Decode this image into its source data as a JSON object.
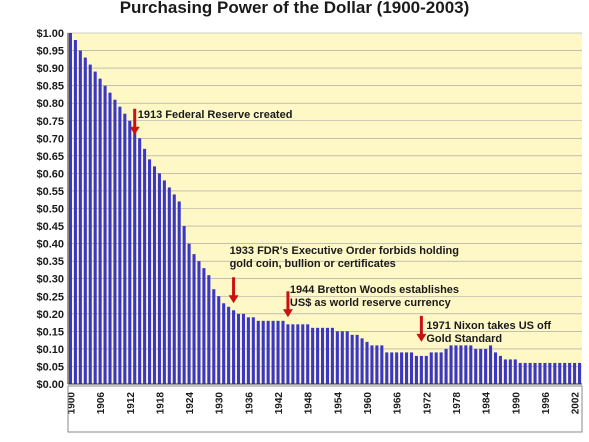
{
  "chart_data": {
    "type": "bar",
    "title": "Purchasing Power of the Dollar (1900-2003)",
    "xlabel": "",
    "ylabel": "",
    "ylim": [
      0,
      1.0
    ],
    "grid": true,
    "legend": "none",
    "yticks": [
      "$1.00",
      "$0.95",
      "$0.90",
      "$0.85",
      "$0.80",
      "$0.75",
      "$0.70",
      "$0.65",
      "$0.60",
      "$0.55",
      "$0.50",
      "$0.45",
      "$0.40",
      "$0.35",
      "$0.30",
      "$0.25",
      "$0.20",
      "$0.15",
      "$0.10",
      "$0.05",
      "$0.00"
    ],
    "xticks": [
      "1900",
      "1906",
      "1912",
      "1918",
      "1924",
      "1930",
      "1936",
      "1942",
      "1948",
      "1954",
      "1960",
      "1966",
      "1972",
      "1978",
      "1984",
      "1990",
      "1996",
      "2002"
    ],
    "x": [
      1900,
      1901,
      1902,
      1903,
      1904,
      1905,
      1906,
      1907,
      1908,
      1909,
      1910,
      1911,
      1912,
      1913,
      1914,
      1915,
      1916,
      1917,
      1918,
      1919,
      1920,
      1921,
      1922,
      1923,
      1924,
      1925,
      1926,
      1927,
      1928,
      1929,
      1930,
      1931,
      1932,
      1933,
      1934,
      1935,
      1936,
      1937,
      1938,
      1939,
      1940,
      1941,
      1942,
      1943,
      1944,
      1945,
      1946,
      1947,
      1948,
      1949,
      1950,
      1951,
      1952,
      1953,
      1954,
      1955,
      1956,
      1957,
      1958,
      1959,
      1960,
      1961,
      1962,
      1963,
      1964,
      1965,
      1966,
      1967,
      1968,
      1969,
      1970,
      1971,
      1972,
      1973,
      1974,
      1975,
      1976,
      1977,
      1978,
      1979,
      1980,
      1981,
      1982,
      1983,
      1984,
      1985,
      1986,
      1987,
      1988,
      1989,
      1990,
      1991,
      1992,
      1993,
      1994,
      1995,
      1996,
      1997,
      1998,
      1999,
      2000,
      2001,
      2002,
      2003
    ],
    "values": [
      1.0,
      0.98,
      0.95,
      0.93,
      0.91,
      0.89,
      0.87,
      0.85,
      0.83,
      0.81,
      0.79,
      0.77,
      0.75,
      0.73,
      0.7,
      0.67,
      0.64,
      0.62,
      0.6,
      0.58,
      0.56,
      0.54,
      0.52,
      0.45,
      0.4,
      0.37,
      0.35,
      0.33,
      0.31,
      0.27,
      0.25,
      0.23,
      0.22,
      0.21,
      0.2,
      0.2,
      0.19,
      0.19,
      0.18,
      0.18,
      0.18,
      0.18,
      0.18,
      0.18,
      0.17,
      0.17,
      0.17,
      0.17,
      0.17,
      0.16,
      0.16,
      0.16,
      0.16,
      0.16,
      0.15,
      0.15,
      0.15,
      0.14,
      0.14,
      0.13,
      0.12,
      0.11,
      0.11,
      0.11,
      0.09,
      0.09,
      0.09,
      0.09,
      0.09,
      0.09,
      0.08,
      0.08,
      0.08,
      0.09,
      0.09,
      0.09,
      0.1,
      0.11,
      0.11,
      0.11,
      0.11,
      0.11,
      0.1,
      0.1,
      0.1,
      0.11,
      0.09,
      0.08,
      0.07,
      0.07,
      0.07,
      0.06,
      0.06,
      0.06,
      0.06,
      0.06,
      0.06,
      0.06,
      0.06,
      0.06,
      0.06,
      0.06,
      0.06,
      0.06
    ],
    "annotations": [
      {
        "year": 1913,
        "lines": [
          "1913 Federal Reserve created"
        ],
        "arrow": false
      },
      {
        "year": 1913,
        "lines": [],
        "arrow": true,
        "arrow_value": 0.71
      },
      {
        "year": 1933,
        "lines": [
          "1933 FDR's Executive Order forbids holding",
          "gold coin, bullion or certificates"
        ],
        "arrow": true,
        "arrow_value": 0.23
      },
      {
        "year": 1944,
        "lines": [
          "1944 Bretton Woods establishes",
          "US$ as world reserve currency"
        ],
        "arrow": true,
        "arrow_value": 0.19
      },
      {
        "year": 1971,
        "lines": [
          "1971 Nixon takes US off",
          "Gold Standard"
        ],
        "arrow": true,
        "arrow_value": 0.12
      }
    ],
    "colors": {
      "plot_bg": "#fdf8c6",
      "bar": "#3a36c7",
      "grid": "#9e9e9e",
      "arrow": "#cc1111",
      "text": "#1a1a1a"
    }
  }
}
